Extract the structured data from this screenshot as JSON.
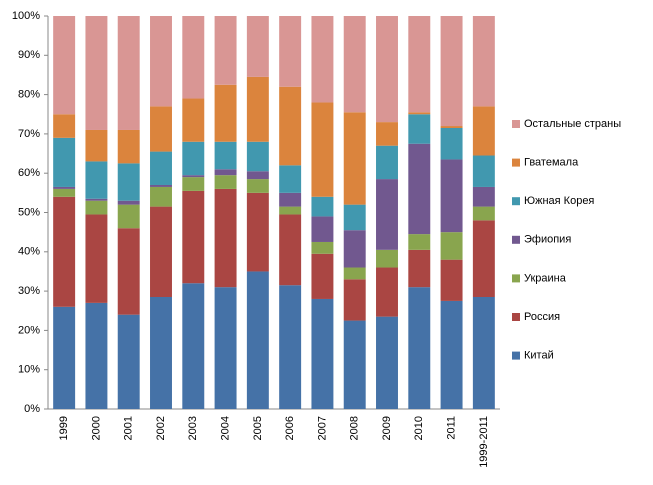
{
  "chart_data": {
    "type": "stacked_bar_100",
    "categories": [
      "1999",
      "2000",
      "2001",
      "2002",
      "2003",
      "2004",
      "2005",
      "2006",
      "2007",
      "2008",
      "2009",
      "2010",
      "2011",
      "1999-2011"
    ],
    "series": [
      {
        "name": "Китай",
        "color": "#4572A7",
        "values": [
          26,
          27,
          24,
          28.5,
          32,
          31,
          35,
          31.5,
          28,
          22.5,
          23.5,
          31,
          27.5,
          28.5
        ]
      },
      {
        "name": "Россия",
        "color": "#AA4643",
        "values": [
          28,
          22.5,
          22,
          23,
          23.5,
          25,
          20,
          18,
          11.5,
          10.5,
          12.5,
          9.5,
          10.5,
          19.5
        ]
      },
      {
        "name": "Украина",
        "color": "#89A54E",
        "values": [
          2,
          3.5,
          6,
          5,
          3.5,
          3.5,
          3.5,
          2,
          3,
          3,
          4.5,
          4,
          7,
          3.5
        ]
      },
      {
        "name": "Эфиопия",
        "color": "#71588F",
        "values": [
          0.5,
          0.5,
          1,
          0.5,
          0.5,
          1.5,
          2,
          3.5,
          6.5,
          9.5,
          18,
          23,
          18.5,
          5
        ]
      },
      {
        "name": "Южная Корея",
        "color": "#4198AF",
        "values": [
          12.5,
          9.5,
          9.5,
          8.5,
          8.5,
          7,
          7.5,
          7,
          5,
          6.5,
          8.5,
          7.5,
          8,
          8
        ]
      },
      {
        "name": "Гватемала",
        "color": "#DB843D",
        "values": [
          6,
          8,
          8.5,
          11.5,
          11,
          14.5,
          16.5,
          20,
          24,
          23.5,
          6,
          0.5,
          0.5,
          12.5
        ]
      },
      {
        "name": "Остальные страны",
        "color": "#D99694",
        "values": [
          25,
          29,
          29,
          23,
          21,
          17.5,
          15.5,
          18,
          22,
          24.5,
          27,
          24.5,
          28,
          23
        ]
      }
    ],
    "ylim": [
      0,
      100
    ],
    "yticks": [
      {
        "value": 0,
        "label": "0%"
      },
      {
        "value": 10,
        "label": "10%"
      },
      {
        "value": 20,
        "label": "20%"
      },
      {
        "value": 30,
        "label": "30%"
      },
      {
        "value": 40,
        "label": "40%"
      },
      {
        "value": 50,
        "label": "50%"
      },
      {
        "value": 60,
        "label": "60%"
      },
      {
        "value": 70,
        "label": "70%"
      },
      {
        "value": 80,
        "label": "80%"
      },
      {
        "value": 90,
        "label": "90%"
      },
      {
        "value": 100,
        "label": "100%"
      }
    ],
    "grid": false,
    "legend": "right"
  }
}
